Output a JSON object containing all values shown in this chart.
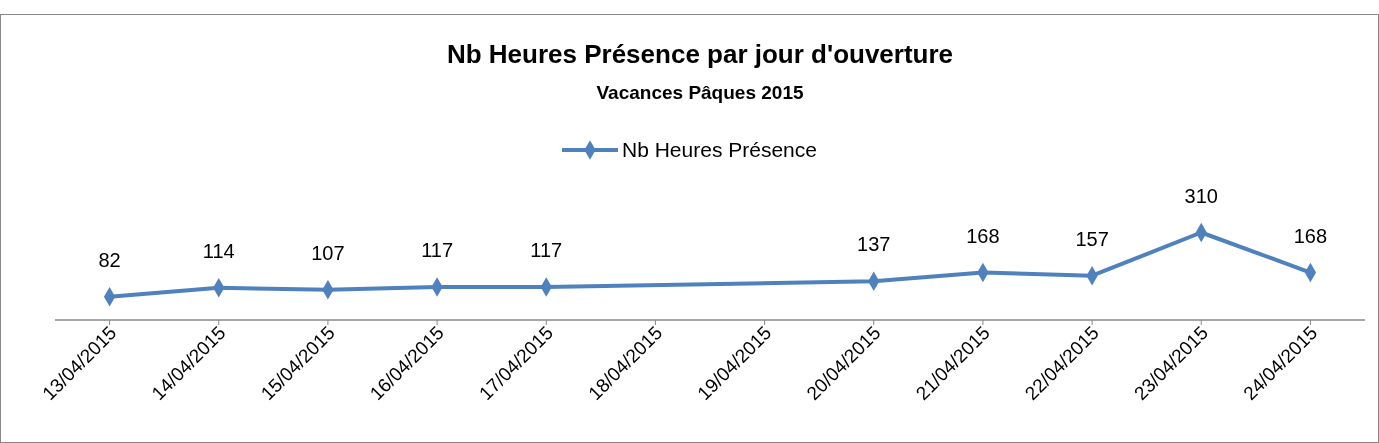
{
  "chart_data": {
    "type": "line",
    "title": "Nb Heures Présence par jour d'ouverture",
    "subtitle": "Vacances Pâques 2015",
    "x": [
      "2015-04-13",
      "2015-04-14",
      "2015-04-15",
      "2015-04-16",
      "2015-04-17",
      "2015-04-20",
      "2015-04-21",
      "2015-04-22",
      "2015-04-23",
      "2015-04-24"
    ],
    "series": [
      {
        "name": "Nb Heures Présence",
        "color": "#4f81bd",
        "values": [
          82,
          114,
          107,
          117,
          117,
          137,
          168,
          157,
          310,
          168
        ]
      }
    ],
    "xlim": [
      "2015-04-12T12:00",
      "2015-04-24T12:00"
    ],
    "xticks": [
      {
        "value": "2015-04-13",
        "label": "13/04/2015"
      },
      {
        "value": "2015-04-14",
        "label": "14/04/2015"
      },
      {
        "value": "2015-04-15",
        "label": "15/04/2015"
      },
      {
        "value": "2015-04-16",
        "label": "16/04/2015"
      },
      {
        "value": "2015-04-17",
        "label": "17/04/2015"
      },
      {
        "value": "2015-04-18",
        "label": "18/04/2015"
      },
      {
        "value": "2015-04-19",
        "label": "19/04/2015"
      },
      {
        "value": "2015-04-20",
        "label": "20/04/2015"
      },
      {
        "value": "2015-04-21",
        "label": "21/04/2015"
      },
      {
        "value": "2015-04-22",
        "label": "22/04/2015"
      },
      {
        "value": "2015-04-23",
        "label": "23/04/2015"
      },
      {
        "value": "2015-04-24",
        "label": "24/04/2015"
      }
    ],
    "tick_labels": "x",
    "data_labels": true,
    "legend": "top",
    "marker": "diamond",
    "line_style": "solid"
  }
}
